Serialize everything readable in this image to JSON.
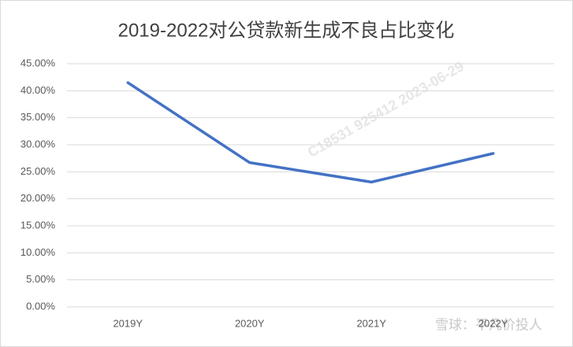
{
  "chart_data": {
    "type": "line",
    "title": "2019-2022对公贷款新生成不良占比变化",
    "categories": [
      "2019Y",
      "2020Y",
      "2021Y",
      "2022Y"
    ],
    "values": [
      41.5,
      26.7,
      23.1,
      28.4
    ],
    "color": "#4472c4",
    "ylim": [
      0,
      45
    ],
    "yticks": [
      {
        "value": 0,
        "label": "0.00%"
      },
      {
        "value": 5,
        "label": "5.00%"
      },
      {
        "value": 10,
        "label": "10.00%"
      },
      {
        "value": 15,
        "label": "15.00%"
      },
      {
        "value": 20,
        "label": "20.00%"
      },
      {
        "value": 25,
        "label": "25.00%"
      },
      {
        "value": 30,
        "label": "30.00%"
      },
      {
        "value": 35,
        "label": "35.00%"
      },
      {
        "value": 40,
        "label": "40.00%"
      },
      {
        "value": 45,
        "label": "45.00%"
      }
    ],
    "grid": true,
    "watermark": "C18531  925412  2023-06-29",
    "source": "雪球：平凡价投人"
  }
}
